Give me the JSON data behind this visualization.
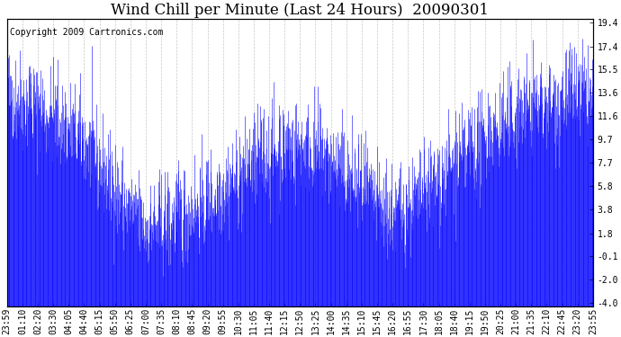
{
  "title": "Wind Chill per Minute (Last 24 Hours)  20090301",
  "copyright": "Copyright 2009 Cartronics.com",
  "ylabel_right_ticks": [
    19.4,
    17.4,
    15.5,
    13.6,
    11.6,
    9.7,
    7.7,
    5.8,
    3.8,
    1.8,
    -0.1,
    -2.0,
    -4.0
  ],
  "ymin": -4.0,
  "ymax": 19.4,
  "x_tick_labels": [
    "23:59",
    "01:10",
    "02:20",
    "03:30",
    "04:05",
    "04:40",
    "05:15",
    "05:50",
    "06:25",
    "07:00",
    "07:35",
    "08:10",
    "08:45",
    "09:20",
    "09:55",
    "10:30",
    "11:05",
    "11:40",
    "12:15",
    "12:50",
    "13:25",
    "14:00",
    "14:35",
    "15:10",
    "15:45",
    "16:20",
    "16:55",
    "17:30",
    "18:05",
    "18:40",
    "19:15",
    "19:50",
    "20:25",
    "21:00",
    "21:35",
    "22:10",
    "22:45",
    "23:20",
    "23:55"
  ],
  "line_color": "#0000ff",
  "bg_color": "#ffffff",
  "grid_color": "#b0b0b0",
  "title_fontsize": 12,
  "copyright_fontsize": 7,
  "tick_fontsize": 7,
  "seed": 42
}
